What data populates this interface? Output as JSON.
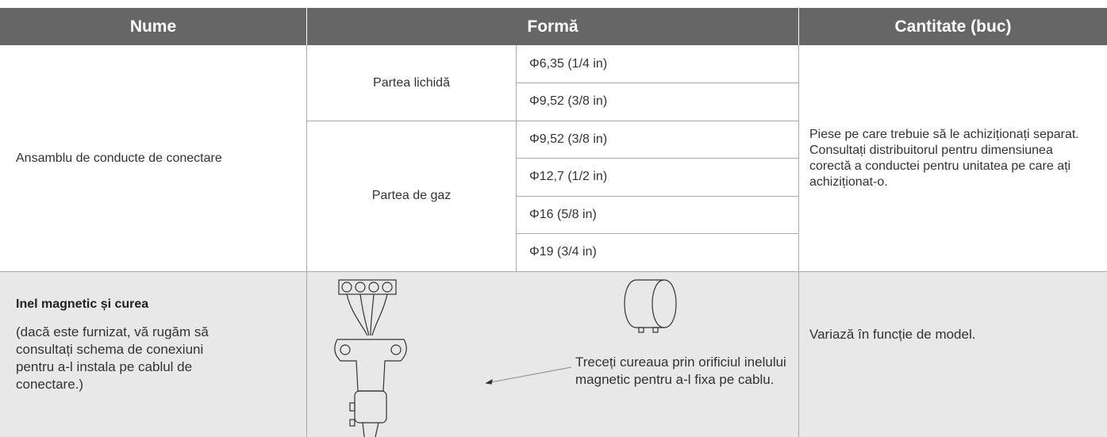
{
  "header": [
    "Nume",
    "Formă",
    "Cantitate (buc)"
  ],
  "rows": [
    {
      "name": "Ansamblu de conducte de conectare",
      "groups": [
        {
          "label": "Partea lichidă",
          "sizes": [
            "Φ6,35 (1/4 in)",
            "Φ9,52 (3/8 in)"
          ]
        },
        {
          "label": "Partea de gaz",
          "sizes": [
            "Φ9,52 (3/8 in)",
            "Φ12,7 (1/2 in)",
            "Φ16 (5/8 in)",
            "Φ19 (3/4 in)"
          ]
        }
      ],
      "quantity": "Piese pe care trebuie să le achiziționați separat. Consultați distribuitorul pentru dimensiunea corectă a conductei pentru unitatea pe care ați achiziționat-o."
    },
    {
      "name": "Inel magnetic și curea",
      "note": "(dacă este furnizat, vă rugăm să consultați schema de conexiuni pentru a-l instala pe cablul de conectare.)",
      "caption": "Treceți cureaua prin orificiul inelului magnetic pentru a-l fixa pe cablu.",
      "quantity": "Variază în funcție de model."
    }
  ]
}
